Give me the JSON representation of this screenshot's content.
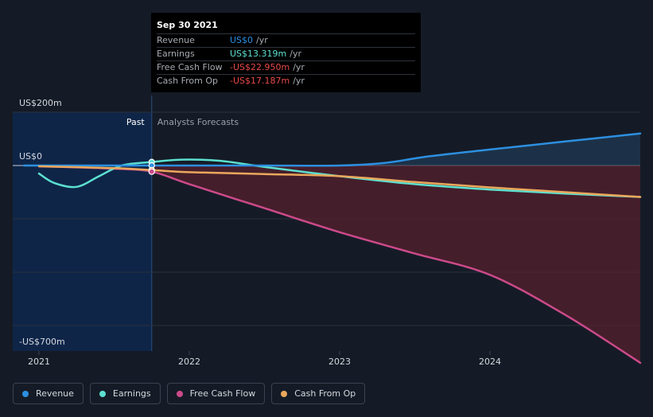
{
  "chart_data": {
    "type": "area",
    "y_axis": {
      "top_label": "US$200m",
      "zero_label": "US$0",
      "bottom_label": "-US$700m",
      "ylim": [
        -700,
        200
      ]
    },
    "x_ticks": [
      "2021",
      "2022",
      "2023",
      "2024"
    ],
    "x_range": [
      2020.9,
      2025.0
    ],
    "past_boundary": 2021.75,
    "labels": {
      "past": "Past",
      "forecast": "Analysts Forecasts"
    },
    "series": [
      {
        "name": "Revenue",
        "color": "#2d8fe0",
        "points": [
          [
            2020.9,
            0
          ],
          [
            2021.0,
            0
          ],
          [
            2021.5,
            0
          ],
          [
            2021.75,
            0
          ],
          [
            2022.0,
            0
          ],
          [
            2022.5,
            0
          ],
          [
            2023.0,
            0
          ],
          [
            2023.3,
            10
          ],
          [
            2023.6,
            35
          ],
          [
            2024.0,
            60
          ],
          [
            2024.5,
            90
          ],
          [
            2025.0,
            120
          ]
        ]
      },
      {
        "name": "Earnings",
        "color": "#5ce0d0",
        "points": [
          [
            2021.0,
            -30
          ],
          [
            2021.1,
            -65
          ],
          [
            2021.25,
            -80
          ],
          [
            2021.4,
            -40
          ],
          [
            2021.55,
            0
          ],
          [
            2021.75,
            13
          ],
          [
            2021.95,
            22
          ],
          [
            2022.2,
            18
          ],
          [
            2022.5,
            -5
          ],
          [
            2023.0,
            -40
          ],
          [
            2023.5,
            -70
          ],
          [
            2024.0,
            -90
          ],
          [
            2024.5,
            -105
          ],
          [
            2025.0,
            -118
          ]
        ]
      },
      {
        "name": "Free Cash Flow",
        "color": "#cc4a8a",
        "points": [
          [
            2021.0,
            -3
          ],
          [
            2021.5,
            -12
          ],
          [
            2021.75,
            -23
          ],
          [
            2022.0,
            -70
          ],
          [
            2022.5,
            -160
          ],
          [
            2023.0,
            -250
          ],
          [
            2023.5,
            -330
          ],
          [
            2024.0,
            -410
          ],
          [
            2024.5,
            -560
          ],
          [
            2025.0,
            -740
          ]
        ]
      },
      {
        "name": "Cash From Op",
        "color": "#eaa85c",
        "points": [
          [
            2021.0,
            -3
          ],
          [
            2021.5,
            -10
          ],
          [
            2021.75,
            -17
          ],
          [
            2022.0,
            -25
          ],
          [
            2022.5,
            -32
          ],
          [
            2023.0,
            -40
          ],
          [
            2023.5,
            -62
          ],
          [
            2024.0,
            -82
          ],
          [
            2024.5,
            -100
          ],
          [
            2025.0,
            -118
          ]
        ]
      }
    ],
    "markers": [
      {
        "x": 2021.75,
        "y": 13,
        "color": "#5ce0d0"
      },
      {
        "x": 2021.75,
        "y": 0,
        "color": "#2d8fe0"
      },
      {
        "x": 2021.75,
        "y": -17,
        "color": "#eaa85c"
      },
      {
        "x": 2021.75,
        "y": -23,
        "color": "#cc4a8a"
      }
    ],
    "grid": true
  },
  "tooltip": {
    "date": "Sep 30 2021",
    "rows": [
      {
        "label": "Revenue",
        "value": "US$0",
        "unit": "/yr",
        "color": "#2d8fe0"
      },
      {
        "label": "Earnings",
        "value": "US$13.319m",
        "unit": "/yr",
        "color": "#5ce0d0"
      },
      {
        "label": "Free Cash Flow",
        "value": "-US$22.950m",
        "unit": "/yr",
        "color": "#e84a4a"
      },
      {
        "label": "Cash From Op",
        "value": "-US$17.187m",
        "unit": "/yr",
        "color": "#e84a4a"
      }
    ]
  },
  "legend": [
    {
      "label": "Revenue",
      "color": "#2d8fe0"
    },
    {
      "label": "Earnings",
      "color": "#5ce0d0"
    },
    {
      "label": "Free Cash Flow",
      "color": "#cc4a8a"
    },
    {
      "label": "Cash From Op",
      "color": "#eaa85c"
    }
  ]
}
